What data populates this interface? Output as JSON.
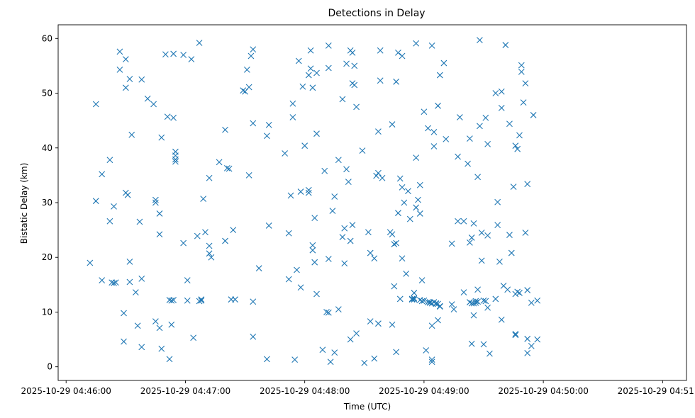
{
  "chart_data": {
    "type": "scatter",
    "title": "Detections in Delay",
    "xlabel": "Time (UTC)",
    "ylabel": "Bistatic Delay (km)",
    "marker": "x",
    "color": "#1f77b4",
    "grid": false,
    "xlim": [
      "2025-10-29 04:45:56",
      "2025-10-29 04:51:12"
    ],
    "ylim": [
      -2.5,
      62.5
    ],
    "xticks": [
      "2025-10-29 04:46:00",
      "2025-10-29 04:47:00",
      "2025-10-29 04:48:00",
      "2025-10-29 04:49:00",
      "2025-10-29 04:50:00",
      "2025-10-29 04:51:00"
    ],
    "yticks": [
      0,
      10,
      20,
      30,
      40,
      50,
      60
    ],
    "x_format": "HH:MM:SS after 2025-10-29 04:",
    "points": [
      [
        "46:12",
        19.0
      ],
      [
        "46:15",
        48.0
      ],
      [
        "46:15",
        30.3
      ],
      [
        "46:18",
        15.8
      ],
      [
        "46:18",
        35.2
      ],
      [
        "46:22",
        37.8
      ],
      [
        "46:22",
        26.6
      ],
      [
        "46:23",
        15.4
      ],
      [
        "46:24",
        29.3
      ],
      [
        "46:24",
        15.3
      ],
      [
        "46:25",
        15.4
      ],
      [
        "46:27",
        57.6
      ],
      [
        "46:27",
        54.3
      ],
      [
        "46:29",
        4.6
      ],
      [
        "46:29",
        9.8
      ],
      [
        "46:30",
        56.2
      ],
      [
        "46:30",
        51.0
      ],
      [
        "46:30",
        31.8
      ],
      [
        "46:31",
        31.4
      ],
      [
        "46:32",
        52.6
      ],
      [
        "46:32",
        19.2
      ],
      [
        "46:32",
        15.5
      ],
      [
        "46:33",
        42.4
      ],
      [
        "46:35",
        13.6
      ],
      [
        "46:36",
        7.5
      ],
      [
        "46:37",
        26.5
      ],
      [
        "46:38",
        52.5
      ],
      [
        "46:38",
        16.1
      ],
      [
        "46:38",
        3.6
      ],
      [
        "46:41",
        49.0
      ],
      [
        "46:44",
        48.0
      ],
      [
        "46:45",
        8.3
      ],
      [
        "46:45",
        30.5
      ],
      [
        "46:45",
        30.0
      ],
      [
        "46:47",
        24.2
      ],
      [
        "46:47",
        28.0
      ],
      [
        "46:47",
        7.1
      ],
      [
        "46:48",
        41.9
      ],
      [
        "46:48",
        3.3
      ],
      [
        "46:50",
        57.1
      ],
      [
        "46:51",
        45.7
      ],
      [
        "46:52",
        12.2
      ],
      [
        "46:52",
        1.4
      ],
      [
        "46:53",
        12.1
      ],
      [
        "46:53",
        7.7
      ],
      [
        "46:54",
        45.5
      ],
      [
        "46:54",
        57.2
      ],
      [
        "46:54",
        12.2
      ],
      [
        "46:55",
        39.3
      ],
      [
        "46:55",
        38.6
      ],
      [
        "46:55",
        37.9
      ],
      [
        "46:55",
        37.5
      ],
      [
        "46:59",
        57.0
      ],
      [
        "46:59",
        22.6
      ],
      [
        "47:01",
        12.1
      ],
      [
        "47:01",
        15.8
      ],
      [
        "47:03",
        56.2
      ],
      [
        "47:04",
        5.3
      ],
      [
        "47:06",
        23.9
      ],
      [
        "47:07",
        59.2
      ],
      [
        "47:07",
        12.0
      ],
      [
        "47:08",
        12.3
      ],
      [
        "47:08",
        12.1
      ],
      [
        "47:09",
        30.7
      ],
      [
        "47:10",
        24.6
      ],
      [
        "47:12",
        34.5
      ],
      [
        "47:12",
        22.1
      ],
      [
        "47:12",
        20.7
      ],
      [
        "47:13",
        20.0
      ],
      [
        "47:17",
        37.4
      ],
      [
        "47:20",
        43.3
      ],
      [
        "47:20",
        23.0
      ],
      [
        "47:21",
        36.3
      ],
      [
        "47:22",
        36.2
      ],
      [
        "47:23",
        12.3
      ],
      [
        "47:24",
        25.0
      ],
      [
        "47:25",
        12.3
      ],
      [
        "47:29",
        50.5
      ],
      [
        "47:30",
        50.3
      ],
      [
        "47:31",
        54.3
      ],
      [
        "47:32",
        51.1
      ],
      [
        "47:32",
        35.0
      ],
      [
        "47:33",
        56.8
      ],
      [
        "47:34",
        11.9
      ],
      [
        "47:34",
        58.0
      ],
      [
        "47:34",
        44.5
      ],
      [
        "47:34",
        5.5
      ],
      [
        "47:37",
        18.0
      ],
      [
        "47:41",
        1.4
      ],
      [
        "47:41",
        42.2
      ],
      [
        "47:42",
        44.2
      ],
      [
        "47:42",
        25.8
      ],
      [
        "47:50",
        39.0
      ],
      [
        "47:52",
        24.4
      ],
      [
        "47:52",
        16.0
      ],
      [
        "47:53",
        31.3
      ],
      [
        "47:54",
        48.1
      ],
      [
        "47:54",
        45.6
      ],
      [
        "47:55",
        1.3
      ],
      [
        "47:56",
        17.7
      ],
      [
        "47:57",
        55.9
      ],
      [
        "47:58",
        14.5
      ],
      [
        "47:58",
        32.0
      ],
      [
        "47:59",
        51.2
      ],
      [
        "48:00",
        40.4
      ],
      [
        "48:02",
        53.3
      ],
      [
        "48:02",
        32.3
      ],
      [
        "48:02",
        31.8
      ],
      [
        "48:03",
        57.8
      ],
      [
        "48:03",
        54.5
      ],
      [
        "48:04",
        22.2
      ],
      [
        "48:04",
        21.3
      ],
      [
        "48:04",
        51.0
      ],
      [
        "48:05",
        19.1
      ],
      [
        "48:05",
        27.2
      ],
      [
        "48:06",
        53.7
      ],
      [
        "48:06",
        42.6
      ],
      [
        "48:06",
        13.3
      ],
      [
        "48:09",
        3.1
      ],
      [
        "48:10",
        35.8
      ],
      [
        "48:11",
        10.0
      ],
      [
        "48:12",
        9.9
      ],
      [
        "48:12",
        19.7
      ],
      [
        "48:12",
        54.6
      ],
      [
        "48:12",
        58.7
      ],
      [
        "48:13",
        0.9
      ],
      [
        "48:14",
        28.5
      ],
      [
        "48:15",
        31.1
      ],
      [
        "48:15",
        2.6
      ],
      [
        "48:17",
        37.8
      ],
      [
        "48:17",
        10.5
      ],
      [
        "48:19",
        23.7
      ],
      [
        "48:19",
        48.9
      ],
      [
        "48:20",
        25.3
      ],
      [
        "48:20",
        18.9
      ],
      [
        "48:21",
        36.1
      ],
      [
        "48:21",
        55.4
      ],
      [
        "48:22",
        33.8
      ],
      [
        "48:23",
        57.8
      ],
      [
        "48:23",
        23.0
      ],
      [
        "48:23",
        5.0
      ],
      [
        "48:24",
        57.4
      ],
      [
        "48:24",
        51.8
      ],
      [
        "48:24",
        25.9
      ],
      [
        "48:25",
        55.0
      ],
      [
        "48:25",
        51.5
      ],
      [
        "48:26",
        47.5
      ],
      [
        "48:26",
        6.1
      ],
      [
        "48:29",
        39.5
      ],
      [
        "48:30",
        0.7
      ],
      [
        "48:32",
        24.6
      ],
      [
        "48:33",
        8.3
      ],
      [
        "48:33",
        20.8
      ],
      [
        "48:35",
        1.5
      ],
      [
        "48:35",
        19.8
      ],
      [
        "48:36",
        34.9
      ],
      [
        "48:37",
        35.4
      ],
      [
        "48:37",
        43.0
      ],
      [
        "48:37",
        7.9
      ],
      [
        "48:38",
        57.8
      ],
      [
        "48:38",
        52.3
      ],
      [
        "48:39",
        34.5
      ],
      [
        "48:43",
        24.6
      ],
      [
        "48:44",
        44.3
      ],
      [
        "48:44",
        7.7
      ],
      [
        "48:44",
        24.2
      ],
      [
        "48:45",
        14.7
      ],
      [
        "48:45",
        22.4
      ],
      [
        "48:46",
        22.6
      ],
      [
        "48:46",
        52.1
      ],
      [
        "48:46",
        2.7
      ],
      [
        "48:47",
        28.1
      ],
      [
        "48:47",
        57.4
      ],
      [
        "48:48",
        34.4
      ],
      [
        "48:48",
        12.4
      ],
      [
        "48:49",
        56.8
      ],
      [
        "48:49",
        32.8
      ],
      [
        "48:49",
        19.8
      ],
      [
        "48:50",
        30.0
      ],
      [
        "48:51",
        17.0
      ],
      [
        "48:52",
        32.1
      ],
      [
        "48:53",
        27.0
      ],
      [
        "48:54",
        12.4
      ],
      [
        "48:54",
        12.3
      ],
      [
        "48:55",
        13.5
      ],
      [
        "48:55",
        12.3
      ],
      [
        "48:55",
        12.5
      ],
      [
        "48:56",
        59.1
      ],
      [
        "48:56",
        38.2
      ],
      [
        "48:56",
        29.1
      ],
      [
        "48:57",
        30.5
      ],
      [
        "48:58",
        12.2
      ],
      [
        "48:58",
        28.0
      ],
      [
        "48:58",
        33.2
      ],
      [
        "48:59",
        12.0
      ],
      [
        "48:59",
        15.8
      ],
      [
        "49:00",
        12.1
      ],
      [
        "49:00",
        46.6
      ],
      [
        "49:01",
        3.0
      ],
      [
        "49:02",
        43.6
      ],
      [
        "49:02",
        11.8
      ],
      [
        "49:03",
        11.8
      ],
      [
        "49:03",
        11.7
      ],
      [
        "49:04",
        58.7
      ],
      [
        "49:04",
        7.5
      ],
      [
        "49:04",
        1.3
      ],
      [
        "49:04",
        0.9
      ],
      [
        "49:04",
        11.6
      ],
      [
        "49:05",
        11.8
      ],
      [
        "49:05",
        40.3
      ],
      [
        "49:05",
        42.9
      ],
      [
        "49:06",
        11.6
      ],
      [
        "49:06",
        11.5
      ],
      [
        "49:07",
        47.7
      ],
      [
        "49:07",
        11.5
      ],
      [
        "49:07",
        8.5
      ],
      [
        "49:08",
        11.1
      ],
      [
        "49:08",
        53.3
      ],
      [
        "49:08",
        11.0
      ],
      [
        "49:10",
        55.5
      ],
      [
        "49:11",
        41.6
      ],
      [
        "49:14",
        22.5
      ],
      [
        "49:14",
        11.4
      ],
      [
        "49:15",
        10.5
      ],
      [
        "49:17",
        26.6
      ],
      [
        "49:17",
        38.4
      ],
      [
        "49:18",
        45.6
      ],
      [
        "49:20",
        26.6
      ],
      [
        "49:20",
        13.6
      ],
      [
        "49:22",
        37.1
      ],
      [
        "49:23",
        41.7
      ],
      [
        "49:23",
        22.7
      ],
      [
        "49:23",
        11.8
      ],
      [
        "49:24",
        23.6
      ],
      [
        "49:24",
        11.6
      ],
      [
        "49:24",
        4.2
      ],
      [
        "49:25",
        11.6
      ],
      [
        "49:25",
        26.2
      ],
      [
        "49:25",
        9.4
      ],
      [
        "49:26",
        11.7
      ],
      [
        "49:26",
        12.0
      ],
      [
        "49:27",
        11.9
      ],
      [
        "49:27",
        34.7
      ],
      [
        "49:27",
        14.1
      ],
      [
        "49:28",
        44.0
      ],
      [
        "49:28",
        59.7
      ],
      [
        "49:29",
        24.5
      ],
      [
        "49:29",
        19.4
      ],
      [
        "49:30",
        4.1
      ],
      [
        "49:30",
        12.1
      ],
      [
        "49:31",
        12.0
      ],
      [
        "49:31",
        45.5
      ],
      [
        "49:32",
        10.8
      ],
      [
        "49:32",
        40.7
      ],
      [
        "49:32",
        24.0
      ],
      [
        "49:33",
        2.4
      ],
      [
        "49:36",
        12.4
      ],
      [
        "49:36",
        50.0
      ],
      [
        "49:37",
        30.1
      ],
      [
        "49:37",
        25.9
      ],
      [
        "49:38",
        19.2
      ],
      [
        "49:39",
        50.3
      ],
      [
        "49:39",
        47.3
      ],
      [
        "49:39",
        8.6
      ],
      [
        "49:40",
        14.8
      ],
      [
        "49:41",
        58.8
      ],
      [
        "49:42",
        14.1
      ],
      [
        "49:43",
        24.1
      ],
      [
        "49:43",
        44.4
      ],
      [
        "49:44",
        20.8
      ],
      [
        "49:45",
        32.9
      ],
      [
        "49:46",
        6.0
      ],
      [
        "49:46",
        5.8
      ],
      [
        "49:46",
        13.3
      ],
      [
        "49:46",
        40.4
      ],
      [
        "49:47",
        13.7
      ],
      [
        "49:47",
        39.8
      ],
      [
        "49:48",
        13.5
      ],
      [
        "49:48",
        42.3
      ],
      [
        "49:49",
        55.1
      ],
      [
        "49:49",
        53.9
      ],
      [
        "49:50",
        48.3
      ],
      [
        "49:51",
        24.5
      ],
      [
        "49:51",
        51.8
      ],
      [
        "49:52",
        14.0
      ],
      [
        "49:52",
        33.4
      ],
      [
        "49:52",
        5.1
      ],
      [
        "49:52",
        2.5
      ],
      [
        "49:54",
        11.7
      ],
      [
        "49:54",
        3.8
      ],
      [
        "49:55",
        46.0
      ],
      [
        "49:57",
        5.0
      ],
      [
        "49:57",
        12.1
      ]
    ]
  }
}
